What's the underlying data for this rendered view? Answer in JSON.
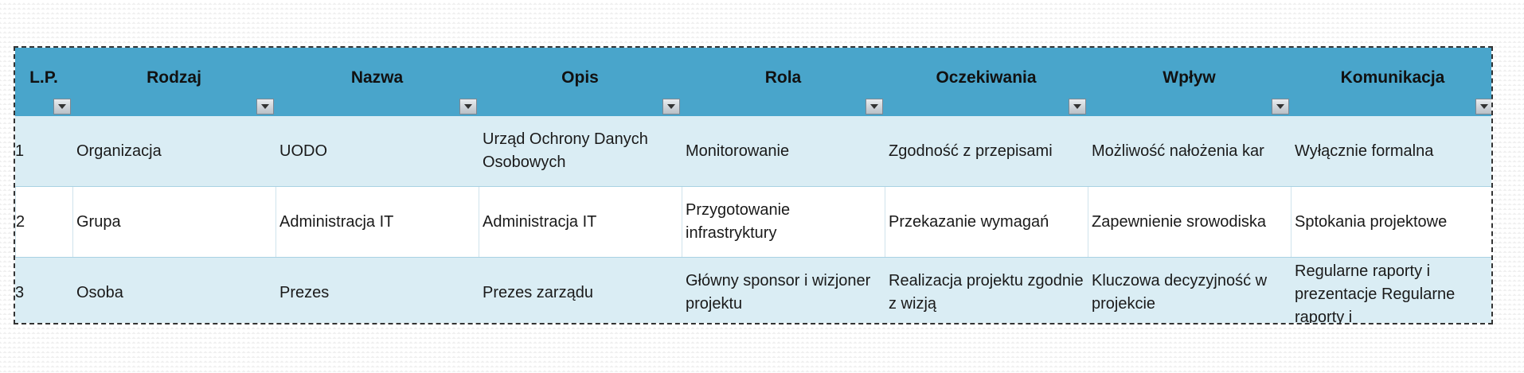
{
  "table": {
    "columns": [
      {
        "label": "L.P."
      },
      {
        "label": "Rodzaj"
      },
      {
        "label": "Nazwa"
      },
      {
        "label": "Opis"
      },
      {
        "label": "Rola"
      },
      {
        "label": "Oczekiwania"
      },
      {
        "label": "Wpływ"
      },
      {
        "label": "Komunikacja"
      }
    ],
    "rows": [
      {
        "cells": [
          "1",
          "Organizacja",
          "UODO",
          "Urząd Ochrony Danych Osobowych",
          "Monitorowanie",
          "Zgodność z przepisami",
          "Możliwość nałożenia kar",
          "Wyłącznie formalna"
        ]
      },
      {
        "cells": [
          "2",
          "Grupa",
          "Administracja IT",
          "Administracja IT",
          "Przygotowanie infrastryktury",
          "Przekazanie wymagań",
          "Zapewnienie srowodiska",
          "Sptokania projektowe"
        ]
      },
      {
        "cells": [
          "3",
          "Osoba",
          "Prezes",
          "Prezes zarządu",
          "Główny sponsor i wizjoner projektu",
          "Realizacja projektu zgodnie z wizją",
          "Kluczowa decyzyjność w projekcie",
          "Regularne raporty i prezentacje Regularne raporty i"
        ]
      }
    ]
  },
  "colors": {
    "header": "#49a5cb",
    "band": "#daedf4"
  },
  "icons": {
    "filter": "chevron-down-icon"
  }
}
